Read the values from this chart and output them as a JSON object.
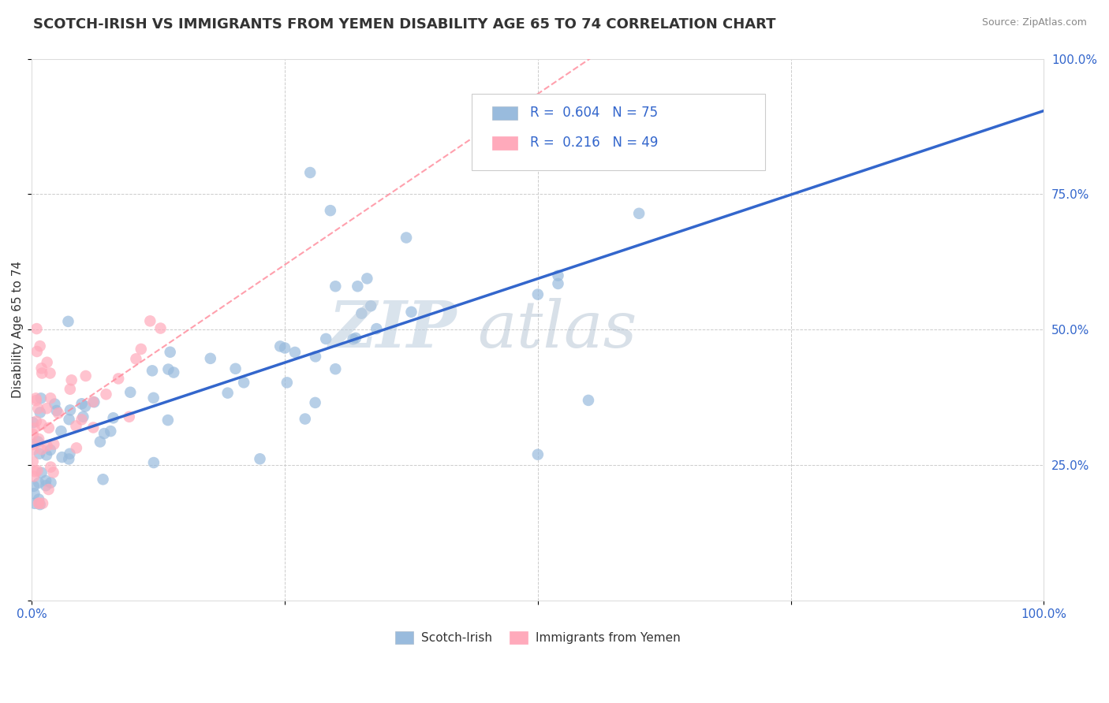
{
  "title": "SCOTCH-IRISH VS IMMIGRANTS FROM YEMEN DISABILITY AGE 65 TO 74 CORRELATION CHART",
  "source": "Source: ZipAtlas.com",
  "ylabel": "Disability Age 65 to 74",
  "watermark_zip": "ZIP",
  "watermark_atlas": "atlas",
  "legend_blue_r": "0.604",
  "legend_blue_n": "75",
  "legend_pink_r": "0.216",
  "legend_pink_n": "49",
  "legend_blue_label": "Scotch-Irish",
  "legend_pink_label": "Immigrants from Yemen",
  "xlim": [
    0.0,
    1.0
  ],
  "ylim": [
    0.0,
    1.0
  ],
  "xticks": [
    0.0,
    0.25,
    0.5,
    0.75,
    1.0
  ],
  "yticks": [
    0.0,
    0.25,
    0.5,
    0.75,
    1.0
  ],
  "xticklabels": [
    "0.0%",
    "",
    "",
    "",
    "100.0%"
  ],
  "yticklabels": [
    "",
    "25.0%",
    "50.0%",
    "75.0%",
    "100.0%"
  ],
  "blue_color": "#99BBDD",
  "pink_color": "#FFAABB",
  "blue_line_color": "#3366CC",
  "pink_line_color": "#FF8899",
  "grid_color": "#CCCCCC",
  "bg_color": "#FFFFFF",
  "title_color": "#333333",
  "axis_color": "#3366CC",
  "watermark_zip_color": "#BBCCDD",
  "watermark_atlas_color": "#AABBCC",
  "title_fontsize": 13,
  "axis_label_fontsize": 11,
  "tick_fontsize": 11,
  "legend_fontsize": 13,
  "watermark_fontsize": 60
}
